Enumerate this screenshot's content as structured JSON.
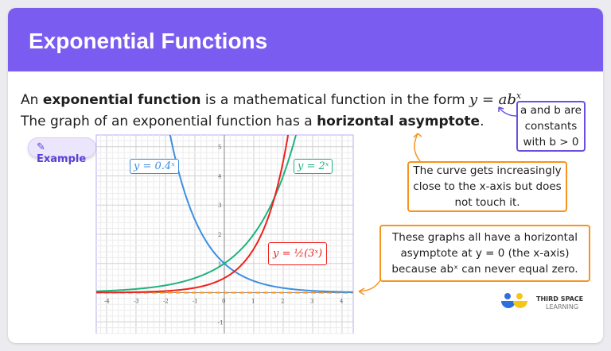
{
  "header": {
    "title": "Exponential Functions"
  },
  "intro": {
    "line1_pre": "An ",
    "line1_bold": "exponential function",
    "line1_post": " is a mathematical function in the form ",
    "line1_math": "y = ab",
    "line1_sup": "x",
    "line2_pre": "The graph of an exponential function has a ",
    "line2_bold": "horizontal asymptote",
    "line2_post": "."
  },
  "badge": {
    "label": "Example",
    "icon": "pencil-icon"
  },
  "callouts": {
    "constants": [
      "a and b are",
      "constants",
      "with b > 0"
    ],
    "curve": [
      "The curve gets increasingly",
      "close to the x-axis but does",
      "not touch it."
    ],
    "asymptote": [
      "These graphs all have a horizontal",
      "asymptote at  y = 0  (the x-axis)",
      "because abˣ can never equal zero."
    ]
  },
  "colors": {
    "header": "#7b5cf0",
    "blue": "#3d8fe0",
    "green": "#1fb37e",
    "red": "#f0201c",
    "orange": "#f7931e",
    "purple": "#6c4fe0"
  },
  "chart_data": {
    "type": "line",
    "xlim": [
      -4.35,
      4.38
    ],
    "ylim": [
      -1.4,
      5.4
    ],
    "x_ticks": [
      "-4",
      "-3",
      "-2",
      "-1",
      "0",
      "1",
      "2",
      "3",
      "4"
    ],
    "y_ticks": [
      "-1",
      "1",
      "2",
      "3",
      "4",
      "5"
    ],
    "grid": true,
    "series": [
      {
        "name": "y = 0.4^x",
        "a": 1,
        "b": 0.4,
        "color": "#3d8fe0"
      },
      {
        "name": "y = 2^x",
        "a": 1,
        "b": 2,
        "color": "#1fb37e"
      },
      {
        "name": "y = 1/2(3^x)",
        "a": 0.5,
        "b": 3,
        "color": "#f0201c"
      }
    ],
    "asymptote": {
      "y": 0,
      "style": "dashed",
      "color": "#f7931e"
    },
    "labels": {
      "blue": "y = 0.4ˣ",
      "green": "y = 2ˣ",
      "red": "y = ½(3ˣ)"
    }
  },
  "logo": {
    "line1": "THIRD SPACE",
    "line2": "LEARNING"
  }
}
